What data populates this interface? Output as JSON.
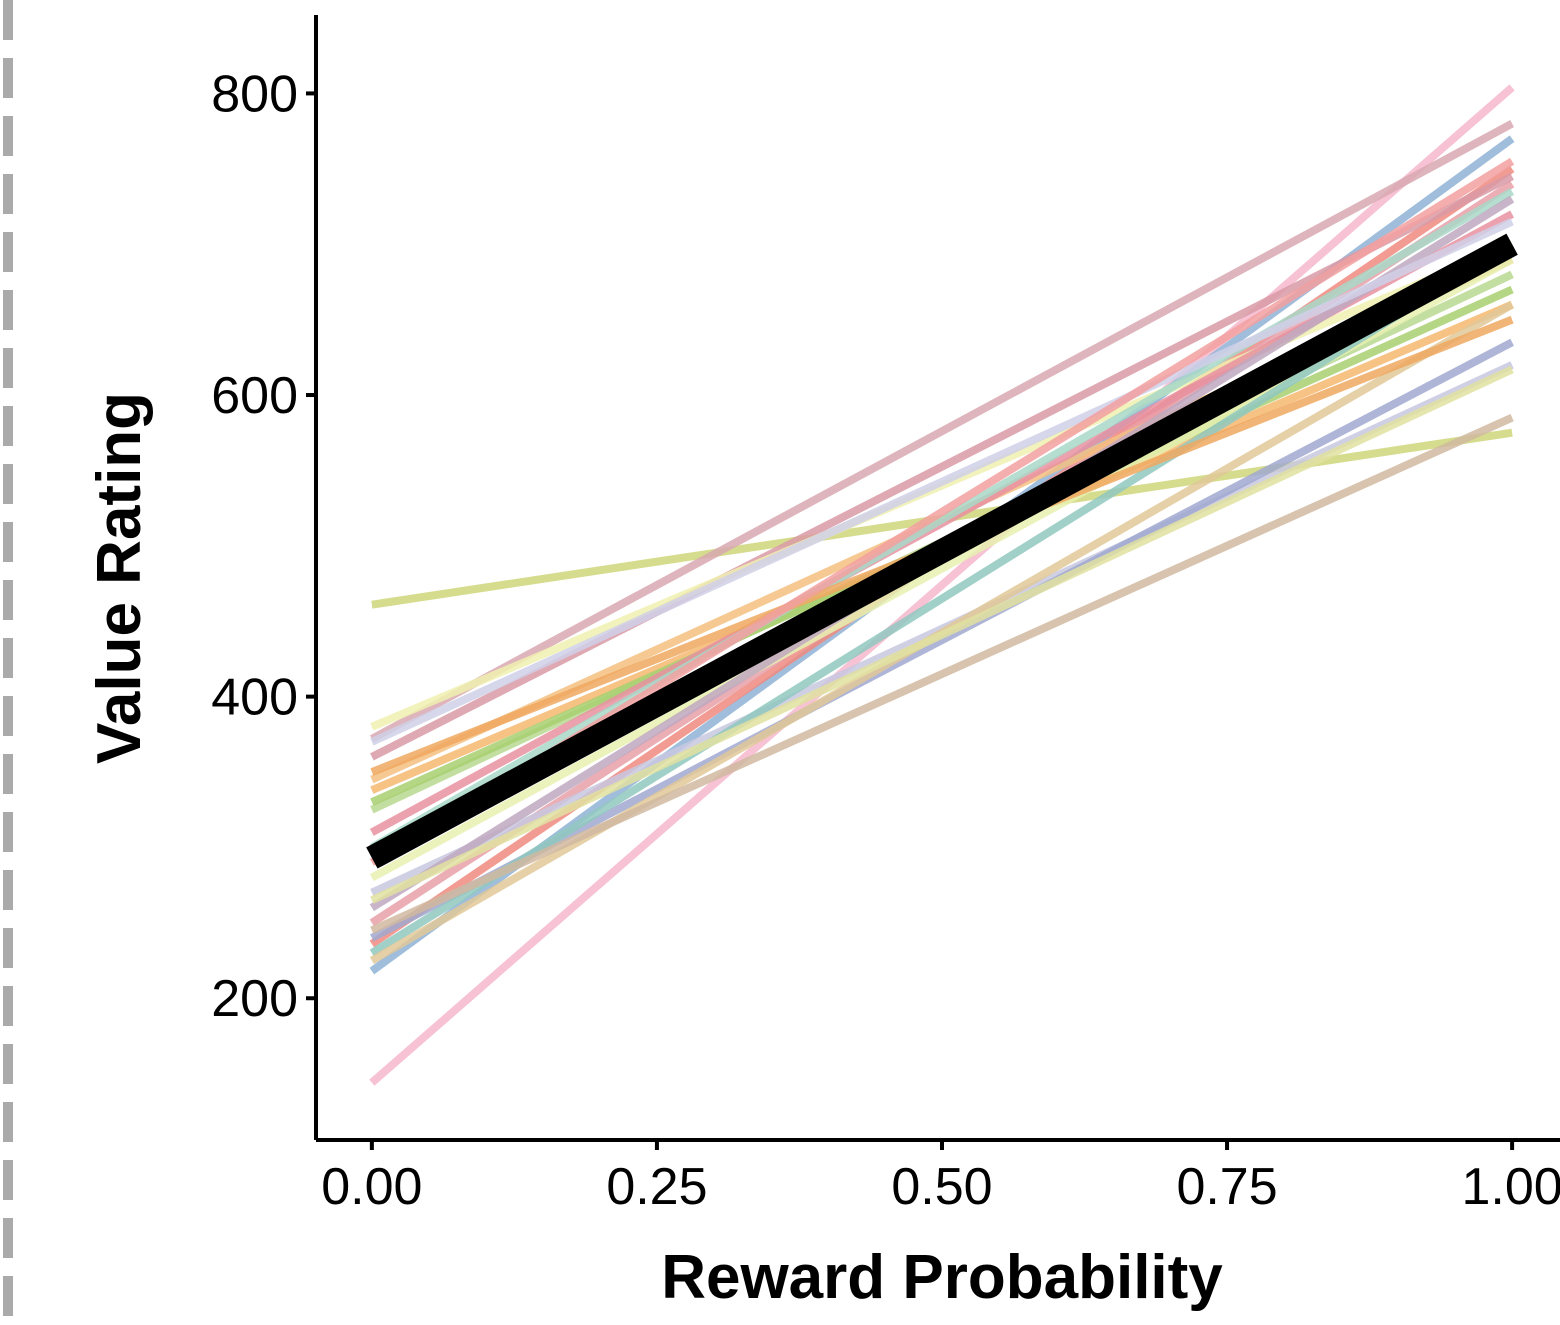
{
  "chart_data": {
    "type": "line",
    "xlabel": "Reward Probability",
    "ylabel": "Value Rating",
    "x": [
      0,
      1
    ],
    "xlim": [
      -0.049,
      1.042
    ],
    "ylim": [
      106,
      852
    ],
    "xticks": [
      {
        "value": 0,
        "label": "0.00"
      },
      {
        "value": 0.25,
        "label": "0.25"
      },
      {
        "value": 0.5,
        "label": "0.50"
      },
      {
        "value": 0.75,
        "label": "0.75"
      },
      {
        "value": 1,
        "label": "1.00"
      }
    ],
    "yticks": [
      200,
      400,
      600,
      800
    ],
    "grid": false,
    "series": [
      {
        "color": "#cfd67a",
        "linewidth": 8,
        "values": [
          461,
          575
        ]
      },
      {
        "color": "#f6b8cc",
        "linewidth": 8,
        "values": [
          144,
          804
        ]
      },
      {
        "color": "#8fb3d6",
        "linewidth": 8,
        "values": [
          218,
          770
        ]
      },
      {
        "color": "#f08a80",
        "linewidth": 8,
        "values": [
          236,
          750
        ]
      },
      {
        "color": "#e8a0a8",
        "linewidth": 8,
        "values": [
          250,
          740
        ]
      },
      {
        "color": "#d8a8b0",
        "linewidth": 8,
        "values": [
          372,
          780
        ]
      },
      {
        "color": "#d99aa6",
        "linewidth": 8,
        "values": [
          360,
          745
        ]
      },
      {
        "color": "#f0f0b0",
        "linewidth": 8,
        "values": [
          380,
          700
        ]
      },
      {
        "color": "#f4c080",
        "linewidth": 8,
        "values": [
          345,
          690
        ]
      },
      {
        "color": "#f4b870",
        "linewidth": 8,
        "values": [
          338,
          660
        ]
      },
      {
        "color": "#b8d890",
        "linewidth": 8,
        "values": [
          325,
          680
        ]
      },
      {
        "color": "#a8d070",
        "linewidth": 8,
        "values": [
          330,
          670
        ]
      },
      {
        "color": "#e890a0",
        "linewidth": 8,
        "values": [
          310,
          720
        ]
      },
      {
        "color": "#a8d8c8",
        "linewidth": 8,
        "values": [
          300,
          735
        ]
      },
      {
        "color": "#e8f0b0",
        "linewidth": 8,
        "values": [
          280,
          690
        ]
      },
      {
        "color": "#c8c8e0",
        "linewidth": 8,
        "values": [
          270,
          620
        ]
      },
      {
        "color": "#c0a8c0",
        "linewidth": 8,
        "values": [
          260,
          730
        ]
      },
      {
        "color": "#a0a8d0",
        "linewidth": 8,
        "values": [
          240,
          635
        ]
      },
      {
        "color": "#90c8c0",
        "linewidth": 8,
        "values": [
          230,
          700
        ]
      },
      {
        "color": "#e0c898",
        "linewidth": 8,
        "values": [
          225,
          660
        ]
      },
      {
        "color": "#d0b8a0",
        "linewidth": 8,
        "values": [
          245,
          585
        ]
      },
      {
        "color": "#e0e0a0",
        "linewidth": 8,
        "values": [
          265,
          617
        ]
      },
      {
        "color": "#f0a860",
        "linewidth": 8,
        "values": [
          350,
          650
        ]
      },
      {
        "color": "#d0d0e8",
        "linewidth": 8,
        "values": [
          370,
          715
        ]
      },
      {
        "color": "#f2a0a0",
        "linewidth": 8,
        "values": [
          290,
          755
        ]
      },
      {
        "color": "#000000",
        "linewidth": 24,
        "values": [
          293,
          700
        ]
      }
    ]
  }
}
